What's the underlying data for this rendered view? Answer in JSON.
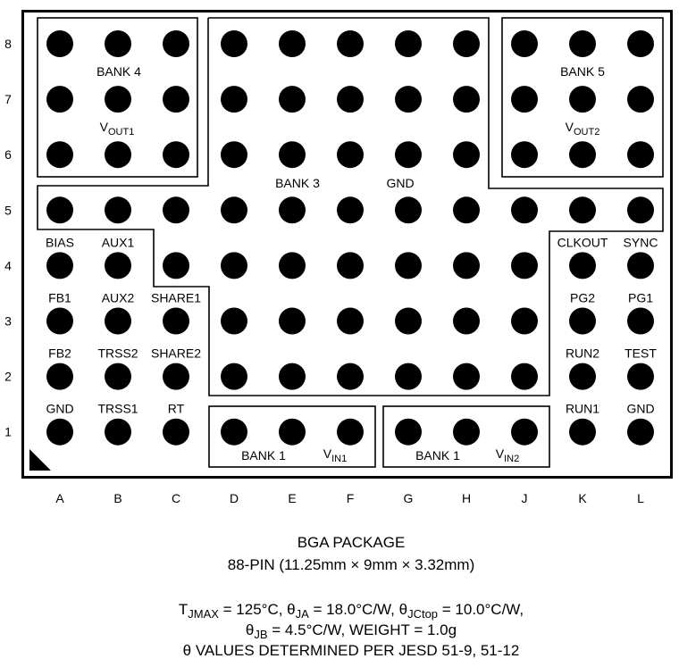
{
  "columns": [
    "A",
    "B",
    "C",
    "D",
    "E",
    "F",
    "G",
    "H",
    "J",
    "K",
    "L"
  ],
  "rows": [
    "8",
    "7",
    "6",
    "5",
    "4",
    "3",
    "2",
    "1"
  ],
  "colors": {
    "ball": "#000000",
    "background": "#ffffff",
    "outline": "#000000"
  },
  "pin1_marker_icon": "triangle-corner",
  "pin_labels": [
    {
      "col": "A",
      "row": "4",
      "label": "BIAS"
    },
    {
      "col": "B",
      "row": "4",
      "label": "AUX1"
    },
    {
      "col": "A",
      "row": "3",
      "label": "FB1"
    },
    {
      "col": "B",
      "row": "3",
      "label": "AUX2"
    },
    {
      "col": "C",
      "row": "3",
      "label": "SHARE1"
    },
    {
      "col": "A",
      "row": "2",
      "label": "FB2"
    },
    {
      "col": "B",
      "row": "2",
      "label": "TRSS2"
    },
    {
      "col": "C",
      "row": "2",
      "label": "SHARE2"
    },
    {
      "col": "A",
      "row": "1",
      "label": "GND"
    },
    {
      "col": "B",
      "row": "1",
      "label": "TRSS1"
    },
    {
      "col": "C",
      "row": "1",
      "label": "RT"
    },
    {
      "col": "K",
      "row": "4",
      "label": "CLKOUT"
    },
    {
      "col": "L",
      "row": "4",
      "label": "SYNC"
    },
    {
      "col": "K",
      "row": "3",
      "label": "PG2"
    },
    {
      "col": "L",
      "row": "3",
      "label": "PG1"
    },
    {
      "col": "K",
      "row": "2",
      "label": "RUN2"
    },
    {
      "col": "L",
      "row": "2",
      "label": "TEST"
    },
    {
      "col": "K",
      "row": "1",
      "label": "RUN1"
    },
    {
      "col": "L",
      "row": "1",
      "label": "GND"
    }
  ],
  "banks": {
    "bank4": {
      "name": "BANK 4",
      "net_main": "V",
      "net_sub": "OUT1"
    },
    "bank5": {
      "name": "BANK 5",
      "net_main": "V",
      "net_sub": "OUT2"
    },
    "bank3": {
      "name": "BANK 3",
      "net": "GND"
    },
    "bank1a": {
      "name": "BANK 1",
      "net_main": "V",
      "net_sub": "IN1"
    },
    "bank1b": {
      "name": "BANK 1",
      "net_main": "V",
      "net_sub": "IN2"
    }
  },
  "caption": {
    "title": "BGA PACKAGE",
    "subtitle": "88-PIN (11.25mm × 9mm × 3.32mm)",
    "thermal1": {
      "t": "T",
      "t_sub": "JMAX",
      "t_val": " = 125°C, θ",
      "ja_sub": "JA",
      "ja_val": " = 18.0°C/W, θ",
      "jc_sub": "JCtop",
      "jc_val": " = 10.0°C/W,"
    },
    "thermal2": {
      "theta": "θ",
      "jb_sub": "JB",
      "rest": " = 4.5°C/W, WEIGHT = 1.0g"
    },
    "thermal3": "θ VALUES DETERMINED PER JESD 51-9, 51-12"
  }
}
